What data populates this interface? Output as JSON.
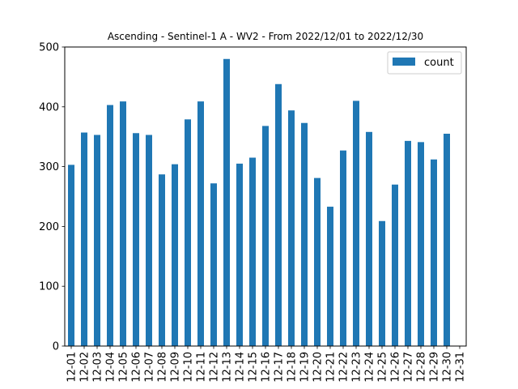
{
  "chart_data": {
    "type": "bar",
    "title": "Ascending - Sentinel-1 A - WV2 - From 2022/12/01 to 2022/12/30",
    "xlabel": "",
    "ylabel": "",
    "ylim": [
      0,
      500
    ],
    "yticks": [
      0,
      100,
      200,
      300,
      400,
      500
    ],
    "categories": [
      "12-01",
      "12-02",
      "12-03",
      "12-04",
      "12-05",
      "12-06",
      "12-07",
      "12-08",
      "12-09",
      "12-10",
      "12-11",
      "12-12",
      "12-13",
      "12-14",
      "12-15",
      "12-16",
      "12-17",
      "12-18",
      "12-19",
      "12-20",
      "12-21",
      "12-22",
      "12-23",
      "12-24",
      "12-25",
      "12-26",
      "12-27",
      "12-28",
      "12-29",
      "12-30",
      "12-31"
    ],
    "series": [
      {
        "name": "count",
        "color": "#1f77b4",
        "values": [
          303,
          357,
          353,
          403,
          409,
          356,
          353,
          287,
          304,
          379,
          409,
          272,
          480,
          305,
          315,
          368,
          438,
          394,
          373,
          281,
          233,
          327,
          410,
          358,
          209,
          270,
          343,
          341,
          312,
          355,
          0
        ]
      }
    ],
    "legend_position": "top-right",
    "grid": false
  }
}
